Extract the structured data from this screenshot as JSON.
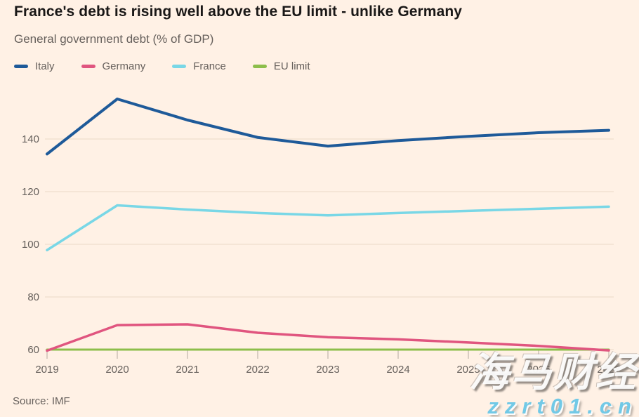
{
  "source": "Source: IMF",
  "watermark": {
    "name": "海马财经",
    "url": "zzrt01.cn"
  },
  "colors": {
    "background": "#fff1e5",
    "title_text": "#1a1817",
    "muted_text": "#66605c",
    "gridline": "#f2e1d2",
    "tick": "#ccc1b7",
    "watermark_url": "#72c9e6"
  },
  "chart_data": {
    "type": "line",
    "title": "France's debt is rising well above the EU limit - unlike Germany",
    "subtitle": "General government debt (% of GDP)",
    "x": [
      2019,
      2020,
      2021,
      2022,
      2023,
      2024,
      2025,
      2026,
      2027
    ],
    "xlabel": "",
    "ylabel": "General government debt (% of GDP)",
    "ylim": [
      56,
      159
    ],
    "yticks": [
      60,
      80,
      100,
      120,
      140
    ],
    "grid": true,
    "legend_position": "top",
    "series": [
      {
        "name": "Italy",
        "color": "#1e5a99",
        "values": [
          134.3,
          155.2,
          147.2,
          140.6,
          137.3,
          139.4,
          141.0,
          142.4,
          143.3
        ]
      },
      {
        "name": "Germany",
        "color": "#e0557f",
        "values": [
          59.6,
          69.3,
          69.6,
          66.4,
          64.7,
          63.9,
          62.7,
          61.4,
          59.7
        ]
      },
      {
        "name": "France",
        "color": "#79d7e6",
        "values": [
          97.8,
          114.8,
          113.2,
          111.9,
          111.0,
          111.9,
          112.7,
          113.5,
          114.3
        ]
      },
      {
        "name": "EU limit",
        "color": "#8dbe4b",
        "values": [
          60,
          60,
          60,
          60,
          60,
          60,
          60,
          60,
          60
        ]
      }
    ]
  }
}
